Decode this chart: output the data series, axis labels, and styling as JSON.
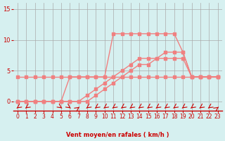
{
  "bg_color": "#d6f0f0",
  "grid_color": "#aaaaaa",
  "line_color": "#f08080",
  "marker_color": "#f08080",
  "text_color": "#cc0000",
  "xlabel": "Vent moyen/en rafales ( km/h )",
  "ylabel_ticks": [
    0,
    5,
    10,
    15
  ],
  "xlim": [
    -0.5,
    23.5
  ],
  "ylim": [
    -1.5,
    16
  ],
  "xticks": [
    0,
    1,
    2,
    3,
    4,
    5,
    6,
    7,
    8,
    9,
    10,
    11,
    12,
    13,
    14,
    15,
    16,
    17,
    18,
    19,
    20,
    21,
    22,
    23
  ],
  "line1_x": [
    0,
    1,
    2,
    3,
    4,
    5,
    6,
    7,
    8,
    9,
    10,
    11,
    12,
    13,
    14,
    15,
    16,
    17,
    18,
    19,
    20,
    21,
    22,
    23
  ],
  "line1_y": [
    4,
    4,
    4,
    4,
    4,
    4,
    4,
    4,
    4,
    4,
    4,
    4,
    4,
    4,
    4,
    4,
    4,
    4,
    4,
    4,
    4,
    4,
    4,
    4
  ],
  "line2_x": [
    0,
    1,
    2,
    3,
    4,
    5,
    6,
    7,
    8,
    9,
    10,
    11,
    12,
    13,
    14,
    15,
    16,
    17,
    18,
    19,
    20,
    21,
    22,
    23
  ],
  "line2_y": [
    0,
    0,
    0,
    0,
    0,
    0,
    4,
    4,
    4,
    4,
    4,
    11,
    11,
    11,
    11,
    11,
    11,
    11,
    11,
    8,
    4,
    4,
    4,
    4
  ],
  "line3_x": [
    0,
    1,
    2,
    3,
    4,
    5,
    6,
    7,
    8,
    9,
    10,
    11,
    12,
    13,
    14,
    15,
    16,
    17,
    18,
    19,
    20,
    21,
    22,
    23
  ],
  "line3_y": [
    0,
    0,
    0,
    0,
    0,
    0,
    0,
    0,
    0,
    1,
    2,
    3,
    4,
    5,
    6,
    6,
    7,
    7,
    7,
    7,
    4,
    4,
    4,
    4
  ],
  "line4_x": [
    0,
    1,
    2,
    3,
    4,
    5,
    6,
    7,
    8,
    9,
    10,
    11,
    12,
    13,
    14,
    15,
    16,
    17,
    18,
    19,
    20,
    21,
    22,
    23
  ],
  "line4_y": [
    0,
    0,
    0,
    0,
    0,
    0,
    0,
    0,
    1,
    2,
    3,
    4,
    5,
    6,
    7,
    7,
    7,
    8,
    8,
    8,
    4,
    4,
    4,
    4
  ],
  "arrows_x": [
    0,
    1,
    5,
    6,
    7,
    8,
    9,
    10,
    11,
    12,
    13,
    14,
    15,
    16,
    17,
    18,
    19,
    20,
    21,
    22,
    23
  ],
  "arrows_angles": [
    225,
    225,
    315,
    315,
    45,
    225,
    225,
    225,
    225,
    225,
    225,
    225,
    225,
    225,
    225,
    225,
    225,
    225,
    225,
    225,
    45
  ]
}
